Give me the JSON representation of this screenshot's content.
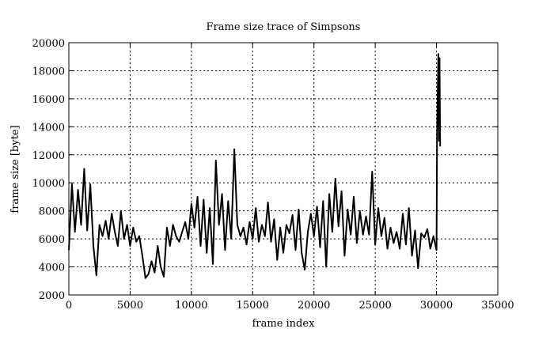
{
  "chart_data": {
    "type": "line",
    "title": "Frame size trace of Simpsons",
    "xlabel": "frame index",
    "ylabel": "frame size [byte]",
    "xlim": [
      0,
      35000
    ],
    "ylim": [
      2000,
      20000
    ],
    "xticks": [
      0,
      5000,
      10000,
      15000,
      20000,
      25000,
      30000,
      35000
    ],
    "yticks": [
      2000,
      4000,
      6000,
      8000,
      10000,
      12000,
      14000,
      16000,
      18000,
      20000
    ],
    "grid": true,
    "line_color": "#000000",
    "series": [
      {
        "x": [
          0,
          250,
          500,
          750,
          1000,
          1250,
          1500,
          1750,
          2000,
          2250,
          2500,
          2750,
          3000,
          3250,
          3500,
          3750,
          4000,
          4250,
          4500,
          4750,
          5000,
          5250,
          5500,
          5750,
          6000,
          6250,
          6500,
          6750,
          7000,
          7250,
          7500,
          7750,
          8000,
          8250,
          8500,
          8750,
          9000,
          9250,
          9500,
          9750,
          10000,
          10250,
          10500,
          10750,
          11000,
          11250,
          11500,
          11750,
          12000,
          12250,
          12500,
          12750,
          13000,
          13250,
          13500,
          13750,
          14000,
          14250,
          14500,
          14750,
          15000,
          15250,
          15500,
          15750,
          16000,
          16250,
          16500,
          16750,
          17000,
          17250,
          17500,
          17750,
          18000,
          18250,
          18500,
          18750,
          19000,
          19250,
          19500,
          19750,
          20000,
          20250,
          20500,
          20750,
          21000,
          21250,
          21500,
          21750,
          22000,
          22250,
          22500,
          22750,
          23000,
          23250,
          23500,
          23750,
          24000,
          24250,
          24500,
          24750,
          25000,
          25250,
          25500,
          25750,
          26000,
          26250,
          26500,
          26750,
          27000,
          27250,
          27500,
          27750,
          28000,
          28250,
          28500,
          28750,
          29000,
          29250,
          29500,
          29750,
          30000,
          30050,
          30150,
          30200,
          30250,
          30300
        ],
        "y": [
          5200,
          9900,
          6500,
          9500,
          7000,
          11000,
          6600,
          9900,
          5500,
          3400,
          7000,
          6200,
          7300,
          6000,
          7800,
          6500,
          5500,
          8000,
          6000,
          7000,
          5500,
          6800,
          5800,
          6200,
          4800,
          3200,
          3500,
          4400,
          3600,
          5500,
          4000,
          3300,
          6800,
          5500,
          7000,
          6200,
          5800,
          6500,
          7200,
          6000,
          8500,
          6800,
          9000,
          5500,
          8800,
          5000,
          8200,
          4200,
          11600,
          7000,
          9200,
          5200,
          8700,
          6000,
          12400,
          7000,
          6200,
          6800,
          5600,
          7200,
          6000,
          8200,
          5800,
          7000,
          6200,
          8600,
          5800,
          7400,
          4500,
          6800,
          5000,
          7000,
          6400,
          7700,
          5200,
          8100,
          5000,
          3800,
          6500,
          7800,
          6200,
          8300,
          5400,
          8700,
          4000,
          9200,
          6500,
          10300,
          6900,
          9400,
          4800,
          8100,
          6300,
          9000,
          5700,
          8000,
          6300,
          7600,
          6300,
          10800,
          5600,
          8200,
          6200,
          7500,
          5300,
          6800,
          5700,
          6500,
          5300,
          7800,
          5600,
          8200,
          4800,
          6600,
          3900,
          6400,
          6100,
          6700,
          5300,
          6200,
          5200,
          13500,
          19200,
          13000,
          18900,
          12600
        ]
      }
    ]
  }
}
